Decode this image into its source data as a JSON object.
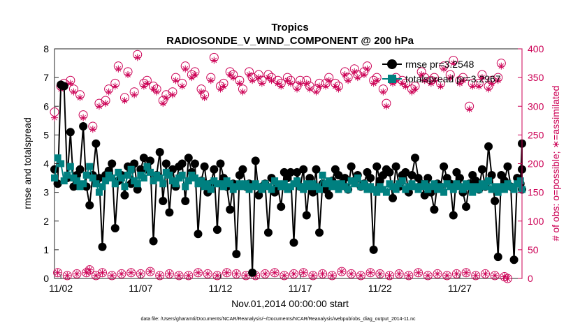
{
  "chart_data": {
    "type": "line",
    "title": "Tropics",
    "subtitle": "RADIOSONDE_V_WIND_COMPONENT @ 200 hPa",
    "xlabel": "Nov.01,2014 00:00:00 start",
    "ylabel_left": "rmse and totalspread",
    "ylabel_right": "# of obs: o=possible; ∗=assimilated",
    "x_ticks": [
      "11/02",
      "11/07",
      "11/12",
      "11/17",
      "11/22",
      "11/27"
    ],
    "x_tick_days": [
      2,
      7,
      12,
      17,
      22,
      27
    ],
    "xlim": [
      1.6,
      30.9
    ],
    "ylim_left": [
      0,
      8
    ],
    "ylim_right": [
      0,
      400
    ],
    "y_ticks_left": [
      "0",
      "1",
      "2",
      "3",
      "4",
      "5",
      "6",
      "7",
      "8"
    ],
    "y_ticks_right": [
      "0",
      "50",
      "100",
      "150",
      "200",
      "250",
      "300",
      "350",
      "400"
    ],
    "left_color": "#000000",
    "right_color": "#cc0055",
    "spread_color": "#008080",
    "footnote": "data file: /Users/gharamti/Documents/NCAR/Reanalysis/~/Documents/NCAR/Reanalysis/webpub/obs_diag_output_2014-11.nc",
    "legend": [
      "rmse pr=3.2548",
      "totalspread pr=3.2967"
    ],
    "series": [
      {
        "name": "rmse pr=3.2548",
        "axis": "left",
        "values": [
          3.8,
          3.3,
          6.75,
          6.7,
          3.5,
          5.1,
          3.2,
          3.6,
          3.8,
          5.3,
          3.2,
          2.55,
          3.6,
          4.7,
          3.5,
          1.1,
          3.6,
          3.75,
          4.0,
          1.75,
          3.4,
          3.6,
          2.9,
          3.9,
          3.3,
          4.0,
          3.1,
          3.8,
          4.2,
          3.8,
          4.1,
          1.3,
          3.6,
          4.4,
          2.7,
          4.0,
          2.3,
          3.8,
          3.2,
          3.9,
          4.0,
          2.7,
          4.2,
          3.7,
          4.0,
          1.55,
          3.4,
          3.9,
          3.0,
          3.3,
          3.8,
          1.7,
          4.0,
          3.5,
          3.2,
          2.4,
          3.3,
          0.85,
          3.6,
          3.8,
          3.2,
          3.3,
          0.2,
          4.1,
          2.9,
          3.2,
          3.3,
          1.6,
          3.5,
          3.0,
          3.2,
          2.5,
          3.7,
          3.5,
          3.7,
          1.25,
          3.7,
          3.2,
          3.8,
          2.2,
          3.5,
          3.0,
          3.8,
          1.6,
          3.3,
          3.1,
          2.9,
          3.4,
          3.8,
          3.6,
          3.3,
          3.5,
          3.1,
          3.9,
          3.4,
          3.6,
          3.2,
          3.3,
          3.7,
          3.5,
          1.0,
          3.9,
          3.4,
          3.6,
          3.8,
          3.7,
          2.8,
          3.9,
          3.2,
          3.6,
          3.7,
          3.0,
          3.6,
          4.2,
          3.5,
          3.3,
          2.9,
          3.5,
          3.0,
          2.4,
          3.3,
          3.2,
          3.9,
          3.5,
          3.3,
          2.2,
          3.7,
          3.5,
          3.0,
          2.5,
          3.3,
          3.6,
          3.4,
          3.1,
          3.8,
          3.2,
          4.6,
          3.6,
          2.7,
          0.75,
          3.6,
          3.4,
          3.9,
          3.2,
          0.65,
          3.5,
          3.3,
          4.7,
          3.8,
          3.1
        ],
        "y_start_day": 1.6,
        "step_days": 0.2
      },
      {
        "name": "totalspread pr=3.2967",
        "axis": "left",
        "values": [
          3.5,
          4.2,
          4.0,
          3.4,
          3.6,
          3.9,
          3.5,
          3.4,
          3.2,
          3.3,
          3.6,
          3.9,
          3.5,
          3.3,
          3.0,
          3.2,
          3.4,
          3.6,
          3.5,
          3.3,
          3.7,
          3.5,
          3.2,
          3.6,
          3.8,
          3.4,
          3.3,
          3.6,
          3.5,
          3.9,
          3.7,
          3.4,
          3.6,
          3.5,
          3.3,
          3.7,
          3.6,
          3.4,
          3.3,
          3.5,
          3.6,
          3.2,
          3.4,
          3.6,
          3.5,
          3.3,
          3.4,
          3.2,
          3.3,
          3.1,
          3.4,
          3.3,
          3.3,
          3.2,
          3.4,
          3.3,
          3.1,
          3.2,
          3.3,
          3.2,
          3.3,
          3.1,
          3.2,
          3.3,
          3.2,
          3.1,
          3.3,
          3.2,
          3.1,
          3.4,
          3.3,
          3.2,
          3.3,
          3.1,
          3.2,
          3.3,
          3.4,
          3.2,
          3.1,
          3.3,
          3.2,
          3.3,
          3.2,
          3.1,
          3.6,
          3.3,
          3.4,
          3.2,
          3.3,
          3.1,
          3.3,
          3.2,
          3.1,
          3.4,
          3.3,
          3.5,
          3.2,
          3.3,
          3.1,
          3.2,
          3.1,
          3.0,
          3.2,
          3.1,
          3.0,
          3.3,
          3.2,
          3.1,
          3.3,
          3.4,
          3.1,
          3.2,
          3.3,
          3.2,
          3.1,
          3.2,
          3.3,
          3.1,
          3.2,
          3.3,
          3.1,
          3.2,
          3.0,
          3.3,
          3.2,
          3.1,
          3.3,
          3.2,
          3.1,
          3.3,
          3.2,
          3.0,
          3.2,
          3.1,
          3.3,
          3.2,
          3.4,
          3.1,
          3.2,
          3.0,
          3.2,
          3.1,
          3.3,
          3.2,
          3.1,
          3.3,
          3.4,
          3.1
        ],
        "y_start_day": 1.6,
        "step_days": 0.2
      },
      {
        "name": "possible obs (o)",
        "axis": "right",
        "values": [
          290,
          10,
          335,
          340,
          5,
          345,
          330,
          8,
          320,
          285,
          10,
          15,
          265,
          5,
          305,
          10,
          310,
          330,
          5,
          340,
          370,
          8,
          315,
          360,
          10,
          325,
          390,
          8,
          340,
          345,
          12,
          335,
          330,
          5,
          310,
          320,
          8,
          325,
          350,
          5,
          340,
          370,
          5,
          355,
          360,
          10,
          330,
          320,
          8,
          350,
          385,
          5,
          335,
          340,
          10,
          360,
          355,
          8,
          345,
          330,
          5,
          360,
          350,
          5,
          355,
          345,
          8,
          355,
          350,
          10,
          345,
          340,
          5,
          350,
          345,
          8,
          335,
          345,
          10,
          345,
          335,
          5,
          330,
          340,
          8,
          340,
          350,
          5,
          340,
          335,
          12,
          360,
          350,
          8,
          365,
          355,
          5,
          360,
          370,
          10,
          345,
          350,
          8,
          330,
          305,
          5,
          345,
          350,
          8,
          345,
          340,
          5,
          330,
          335,
          10,
          360,
          350,
          5,
          345,
          350,
          8,
          340,
          370,
          5,
          355,
          380,
          8,
          345,
          350,
          10,
          300,
          340,
          5,
          340,
          355,
          8,
          335,
          345,
          5,
          350,
          375,
          3,
          0
        ],
        "y_start_day": 1.6,
        "step_days": 0.2
      },
      {
        "name": "assimilated obs (*)",
        "axis": "right",
        "values": [
          280,
          10,
          330,
          335,
          5,
          340,
          325,
          8,
          315,
          280,
          10,
          15,
          260,
          5,
          300,
          10,
          305,
          325,
          5,
          335,
          365,
          8,
          310,
          355,
          10,
          320,
          385,
          8,
          335,
          340,
          12,
          330,
          325,
          5,
          305,
          315,
          8,
          320,
          345,
          5,
          335,
          365,
          5,
          350,
          355,
          10,
          325,
          315,
          8,
          345,
          380,
          5,
          330,
          335,
          10,
          355,
          350,
          8,
          340,
          325,
          5,
          355,
          345,
          5,
          350,
          340,
          8,
          350,
          345,
          10,
          340,
          335,
          5,
          345,
          340,
          8,
          330,
          340,
          10,
          340,
          330,
          5,
          325,
          335,
          8,
          335,
          345,
          5,
          335,
          330,
          12,
          355,
          345,
          8,
          360,
          350,
          5,
          355,
          365,
          10,
          340,
          345,
          8,
          325,
          300,
          5,
          340,
          345,
          8,
          340,
          335,
          5,
          325,
          330,
          10,
          355,
          345,
          5,
          340,
          345,
          8,
          335,
          365,
          5,
          350,
          375,
          8,
          340,
          345,
          10,
          295,
          335,
          5,
          335,
          350,
          8,
          330,
          340,
          5,
          345,
          370,
          3,
          0
        ],
        "y_start_day": 1.6,
        "step_days": 0.2
      }
    ]
  }
}
